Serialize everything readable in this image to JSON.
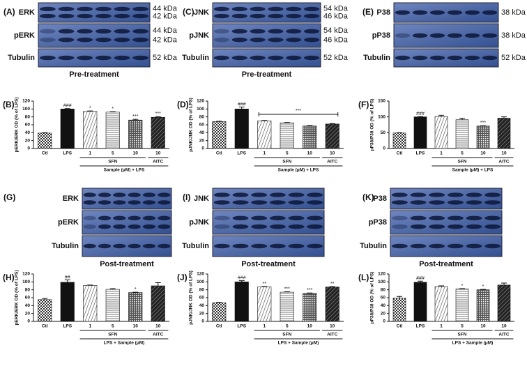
{
  "blots": [
    {
      "panel": "(A)",
      "rows": [
        {
          "label": "ERK",
          "kda": [
            "44 kDa",
            "42 kDa"
          ]
        },
        {
          "label": "pERK",
          "kda": [
            "44 kDa",
            "42 kDa"
          ]
        },
        {
          "label": "Tubulin",
          "kda": [
            "52 kDa"
          ]
        }
      ],
      "footer": "Pre-treatment"
    },
    {
      "panel": "(C)",
      "rows": [
        {
          "label": "JNK",
          "kda": [
            "54 kDa",
            "46 kDa"
          ]
        },
        {
          "label": "pJNK",
          "kda": [
            "54 kDa",
            "46 kDa"
          ]
        },
        {
          "label": "Tubulin",
          "kda": [
            "52 kDa"
          ]
        }
      ],
      "footer": "Pre-treatment"
    },
    {
      "panel": "(E)",
      "rows": [
        {
          "label": "P38",
          "kda": [
            "38 kDa"
          ]
        },
        {
          "label": "pP38",
          "kda": [
            "38 kDa"
          ]
        },
        {
          "label": "Tubulin",
          "kda": [
            "52 kDa"
          ]
        }
      ]
    },
    {
      "panel": "(G)",
      "rows": [
        {
          "label": "ERK"
        },
        {
          "label": "pERK"
        },
        {
          "label": "Tubulin"
        }
      ],
      "footer": "Post-treatment"
    },
    {
      "panel": "(I)",
      "rows": [
        {
          "label": "JNK"
        },
        {
          "label": "pJNK"
        },
        {
          "label": "Tubulin"
        }
      ],
      "footer": "Post-treatment"
    },
    {
      "panel": "(K)",
      "rows": [
        {
          "label": "P38"
        },
        {
          "label": "pP38"
        },
        {
          "label": "Tubulin"
        }
      ],
      "footer": "Post-treatment"
    }
  ],
  "chart_data": [
    {
      "type": "bar",
      "panel": "(B)",
      "y_label": "pERK/ERK OD  (% of LPS)",
      "categories": [
        "Ctl",
        "LPS",
        "1",
        "5",
        "10",
        "10"
      ],
      "values": [
        39,
        100,
        94,
        92,
        72,
        79
      ],
      "errors": [
        1,
        1,
        1,
        1,
        2,
        2
      ],
      "annotations": [
        null,
        "###",
        "*",
        "*",
        "***",
        "***"
      ],
      "groups": [
        "SFN",
        "AITC"
      ],
      "x_label": "Sample (μM) + LPS",
      "ylim": [
        0,
        120
      ],
      "yticks": [
        0,
        20,
        40,
        60,
        80,
        100,
        120
      ]
    },
    {
      "type": "bar",
      "panel": "(D)",
      "y_label": "pJNK/JNK OD  (% of LPS)",
      "categories": [
        "Ctl",
        "LPS",
        "1",
        "5",
        "10",
        "10"
      ],
      "values": [
        68,
        100,
        70,
        65,
        57,
        62
      ],
      "errors": [
        1,
        5,
        1,
        1,
        1,
        1
      ],
      "annotations": [
        null,
        "###",
        null,
        null,
        null,
        null
      ],
      "bracket_annotation": "***",
      "groups": [
        "SFN",
        "AITC"
      ],
      "x_label": "Sample (μM) + LPS",
      "ylim": [
        0,
        120
      ],
      "yticks": [
        0,
        20,
        40,
        60,
        80,
        100,
        120
      ]
    },
    {
      "type": "bar",
      "panel": "(F)",
      "y_label": "pP38/P38 OD  (% of LPS)",
      "categories": [
        "Ctl",
        "LPS",
        "1",
        "5",
        "10",
        "10"
      ],
      "values": [
        49,
        100,
        101,
        91,
        71,
        96
      ],
      "errors": [
        1,
        1,
        4,
        5,
        1,
        4
      ],
      "annotations": [
        null,
        "###",
        null,
        null,
        "***",
        null
      ],
      "groups": [
        "SFN",
        "AITC"
      ],
      "x_label": "Sample (μM) + LPS",
      "ylim": [
        0,
        150
      ],
      "yticks": [
        0,
        50,
        100,
        150
      ]
    },
    {
      "type": "bar",
      "panel": "(H)",
      "y_label": "pERK/ERK OD  (% of LPS)",
      "categories": [
        "Ctl",
        "LPS",
        "1",
        "5",
        "10",
        "10"
      ],
      "values": [
        55,
        99,
        91,
        81,
        73,
        90
      ],
      "errors": [
        3,
        6,
        1,
        2,
        1,
        8
      ],
      "annotations": [
        null,
        "##",
        null,
        null,
        "*",
        null
      ],
      "groups": [
        "SFN",
        "AITC"
      ],
      "x_label": "LPS + Sample (μM)",
      "ylim": [
        0,
        120
      ],
      "yticks": [
        0,
        20,
        40,
        60,
        80,
        100,
        120
      ]
    },
    {
      "type": "bar",
      "panel": "(J)",
      "y_label": "pJNK/JNK OD  (% of LPS)",
      "categories": [
        "Ctl",
        "LPS",
        "1",
        "5",
        "10",
        "10"
      ],
      "values": [
        47,
        100,
        87,
        74,
        71,
        87
      ],
      "errors": [
        1,
        3,
        1,
        1,
        1,
        1
      ],
      "annotations": [
        null,
        "###",
        "**",
        "***",
        "***",
        "**"
      ],
      "groups": [
        "SFN",
        "AITC"
      ],
      "x_label": "LPS + Sample (μM)",
      "ylim": [
        0,
        120
      ],
      "yticks": [
        0,
        20,
        40,
        60,
        80,
        100,
        120
      ]
    },
    {
      "type": "bar",
      "panel": "(L)",
      "y_label": "pP38/P38 OD  (% of LPS)",
      "categories": [
        "Ctl",
        "LPS",
        "1",
        "5",
        "10",
        "10"
      ],
      "values": [
        59,
        99,
        88,
        82,
        80,
        92
      ],
      "errors": [
        4,
        3,
        2,
        1,
        1,
        5
      ],
      "annotations": [
        null,
        "###",
        null,
        "*",
        "*",
        null
      ],
      "groups": [
        "SFN",
        "AITC"
      ],
      "x_label": "LPS + Sample (μM)",
      "ylim": [
        0,
        120
      ],
      "yticks": [
        0,
        20,
        40,
        60,
        80,
        100,
        120
      ]
    }
  ]
}
